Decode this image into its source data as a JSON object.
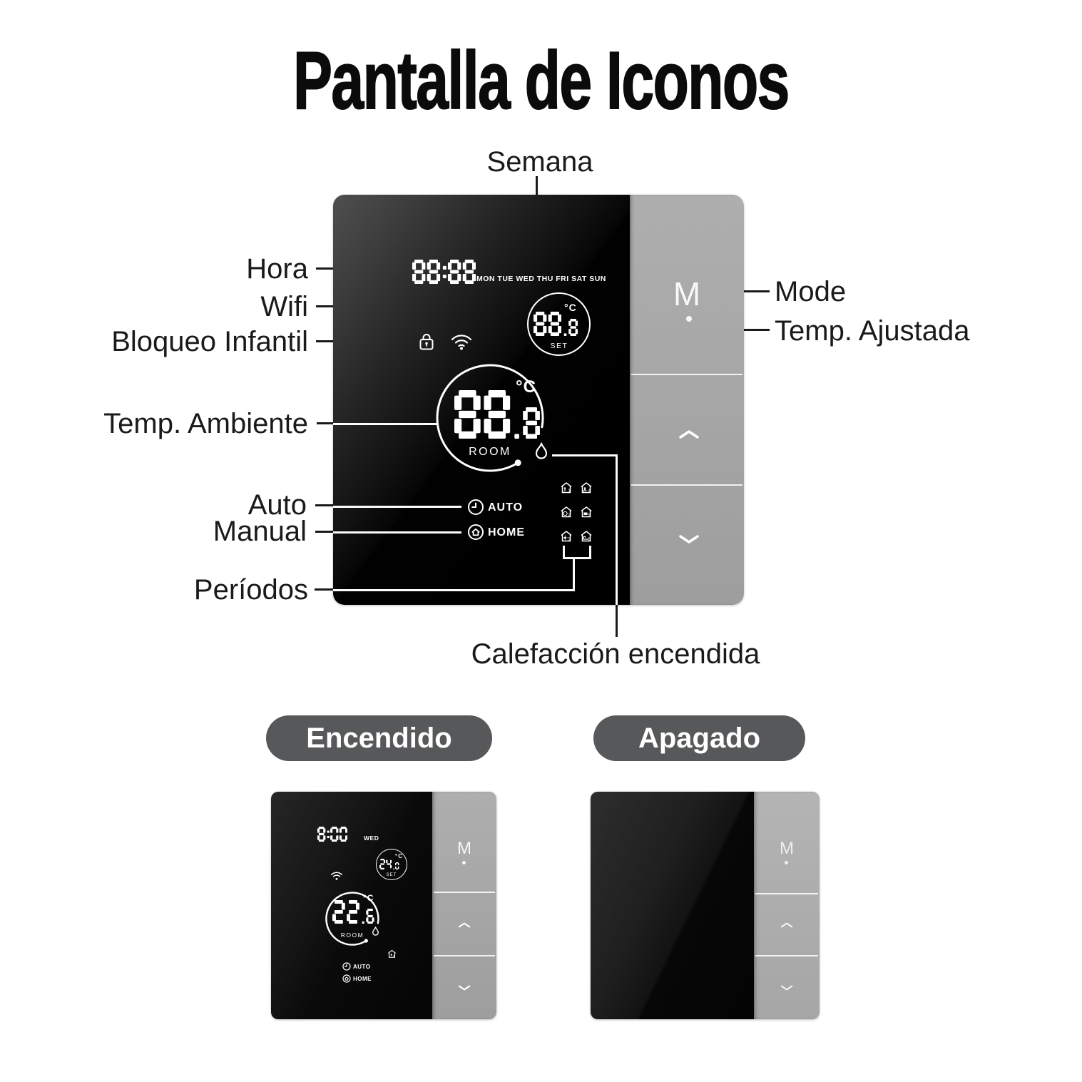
{
  "title": "Pantalla de Iconos",
  "callouts": {
    "semana": "Semana",
    "hora": "Hora",
    "wifi": "Wifi",
    "bloqueo": "Bloqueo Infantil",
    "temp_ambiente": "Temp. Ambiente",
    "auto": "Auto",
    "manual": "Manual",
    "periodos": "Períodos",
    "mode": "Mode",
    "temp_ajustada": "Temp. Ajustada",
    "calefaccion": "Calefacción encendida"
  },
  "states": {
    "on": "Encendido",
    "off": "Apagado"
  },
  "main_device": {
    "time": "88:88",
    "days": "MON TUE WED THU FRI SAT SUN",
    "set_temp": {
      "main": "88",
      "dec": "8",
      "unit": "°C",
      "label": "SET"
    },
    "room_temp": {
      "main": "88",
      "dec": "8",
      "unit": "°C",
      "label": "ROOM"
    },
    "auto_label": "AUTO",
    "home_label": "HOME",
    "period_numbers": [
      "1",
      "2",
      "3",
      "4",
      "5",
      "6"
    ],
    "mode_button": "M"
  },
  "on_device": {
    "time": "8:00",
    "day": "WED",
    "set_temp": {
      "main": "24",
      "dec": "0",
      "unit": "°C",
      "label": "SET"
    },
    "room_temp": {
      "main": "22",
      "dec": "6",
      "unit": "°C",
      "label": "ROOM"
    },
    "auto_label": "AUTO",
    "home_label": "HOME",
    "mode_button": "M"
  },
  "off_device": {
    "mode_button": "M"
  },
  "colors": {
    "accent_dark": "#1a1a1a",
    "pill": "#57585a",
    "panel_gray": "#a6a6a6"
  }
}
